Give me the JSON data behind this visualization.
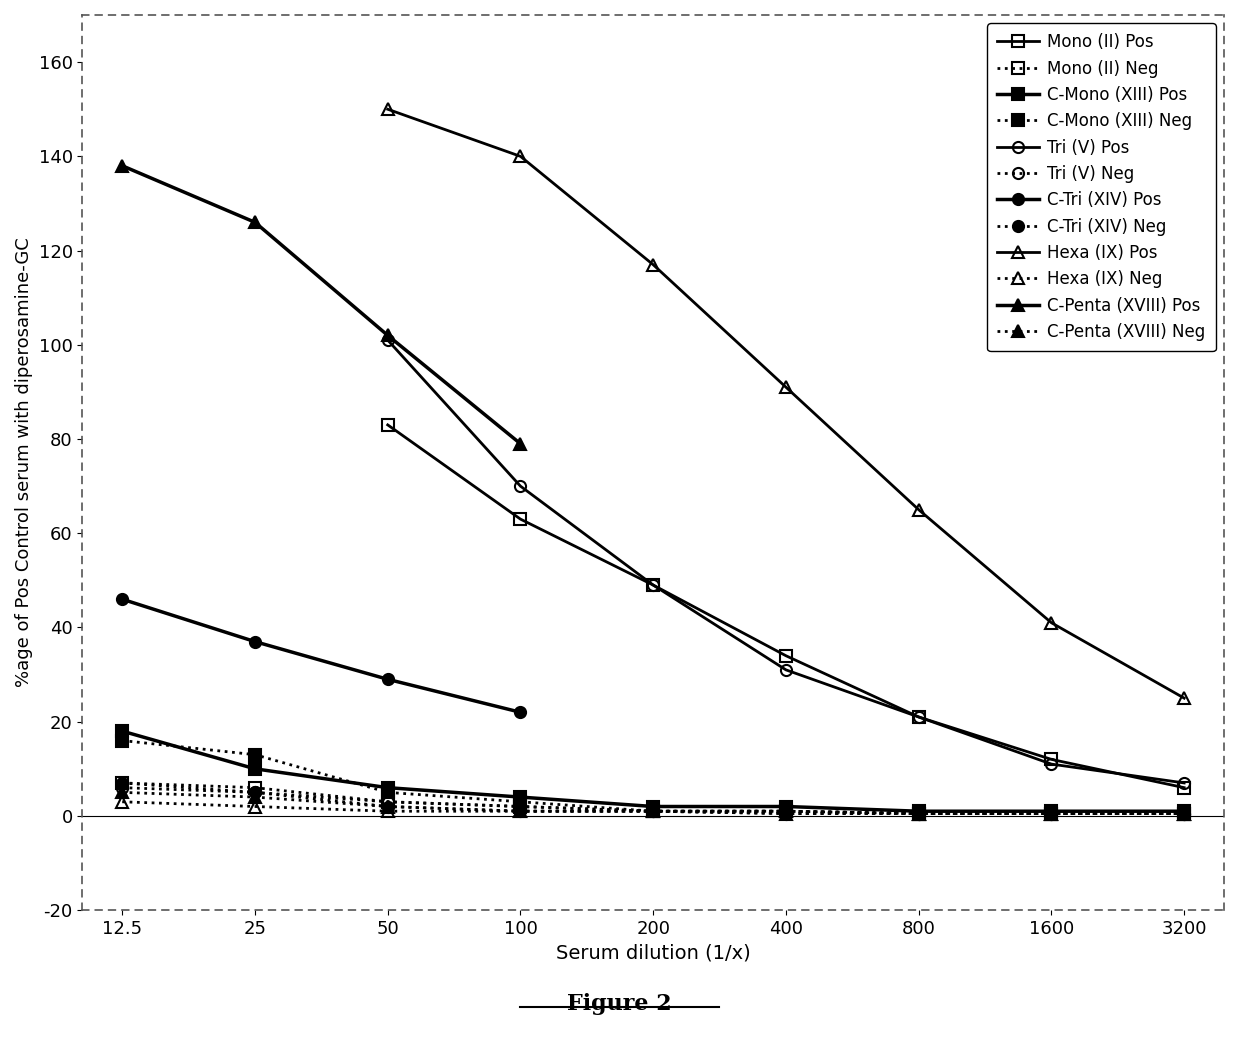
{
  "x": [
    12.5,
    25,
    50,
    100,
    200,
    400,
    800,
    1600,
    3200
  ],
  "series": [
    {
      "label": "Mono (II) Pos",
      "values": [
        null,
        null,
        83,
        63,
        49,
        34,
        21,
        12,
        6
      ],
      "marker": "s",
      "linestyle": "-",
      "fillstyle": "none",
      "linewidth": 2.0,
      "markersize": 8,
      "color": "black"
    },
    {
      "label": "Mono (II) Neg",
      "values": [
        7,
        6,
        3,
        2,
        1,
        1,
        0.5,
        0.5,
        0.5
      ],
      "marker": "s",
      "linestyle": ":",
      "fillstyle": "none",
      "linewidth": 2.0,
      "markersize": 8,
      "color": "black"
    },
    {
      "label": "C-Mono (XIII) Pos",
      "values": [
        18,
        10,
        6,
        4,
        2,
        2,
        1,
        1,
        1
      ],
      "marker": "s",
      "linestyle": "-",
      "fillstyle": "full",
      "linewidth": 2.5,
      "markersize": 8,
      "color": "black"
    },
    {
      "label": "C-Mono (XIII) Neg",
      "values": [
        16,
        13,
        5,
        3,
        1,
        1,
        0.5,
        0.5,
        0.5
      ],
      "marker": "s",
      "linestyle": ":",
      "fillstyle": "full",
      "linewidth": 2.0,
      "markersize": 8,
      "color": "black"
    },
    {
      "label": "Tri (V) Pos",
      "values": [
        null,
        null,
        101,
        70,
        49,
        31,
        21,
        11,
        7
      ],
      "marker": "o",
      "linestyle": "-",
      "fillstyle": "none",
      "linewidth": 2.0,
      "markersize": 8,
      "color": "black"
    },
    {
      "label": "Tri (V) Neg",
      "values": [
        6,
        5,
        3,
        2,
        1,
        1,
        0.5,
        0.5,
        0.5
      ],
      "marker": "o",
      "linestyle": ":",
      "fillstyle": "none",
      "linewidth": 2.0,
      "markersize": 8,
      "color": "black"
    },
    {
      "label": "C-Tri (XIV) Pos",
      "values": [
        46,
        37,
        29,
        22,
        null,
        null,
        null,
        null,
        null
      ],
      "marker": "o",
      "linestyle": "-",
      "fillstyle": "full",
      "linewidth": 2.5,
      "markersize": 8,
      "color": "black"
    },
    {
      "label": "C-Tri (XIV) Neg",
      "values": [
        7,
        5,
        2,
        1,
        1,
        0.5,
        0.5,
        0.5,
        0.5
      ],
      "marker": "o",
      "linestyle": ":",
      "fillstyle": "full",
      "linewidth": 2.0,
      "markersize": 8,
      "color": "black"
    },
    {
      "label": "Hexa (IX) Pos",
      "values": [
        null,
        null,
        150,
        140,
        117,
        91,
        65,
        41,
        25
      ],
      "marker": "^",
      "linestyle": "-",
      "fillstyle": "none",
      "linewidth": 2.0,
      "markersize": 9,
      "color": "black"
    },
    {
      "label": "Hexa (IX) Neg",
      "values": [
        3,
        2,
        1,
        1,
        1,
        1,
        0.5,
        0.5,
        0.5
      ],
      "marker": "^",
      "linestyle": ":",
      "fillstyle": "none",
      "linewidth": 2.0,
      "markersize": 9,
      "color": "black"
    },
    {
      "label": "C-Penta (XVIII) Pos",
      "values": [
        138,
        126,
        102,
        79,
        null,
        null,
        null,
        null,
        null
      ],
      "marker": "^",
      "linestyle": "-",
      "fillstyle": "full",
      "linewidth": 2.5,
      "markersize": 9,
      "color": "black"
    },
    {
      "label": "C-Penta (XVIII) Neg",
      "values": [
        5,
        4,
        2,
        1,
        1,
        0.5,
        0.5,
        0.5,
        0.5
      ],
      "marker": "^",
      "linestyle": ":",
      "fillstyle": "full",
      "linewidth": 2.0,
      "markersize": 9,
      "color": "black"
    }
  ],
  "xlabel": "Serum dilution (1/x)",
  "ylabel": "%age of Pos Control serum with diperosamine-GC",
  "ylim": [
    -20,
    170
  ],
  "yticks": [
    -20,
    0,
    20,
    40,
    60,
    80,
    100,
    120,
    140,
    160
  ],
  "xtick_labels": [
    "12.5",
    "25",
    "50",
    "100",
    "200",
    "400",
    "800",
    "1600",
    "3200"
  ],
  "figure_label": "Figure 2",
  "background_color": "white",
  "border_color": "#555555"
}
